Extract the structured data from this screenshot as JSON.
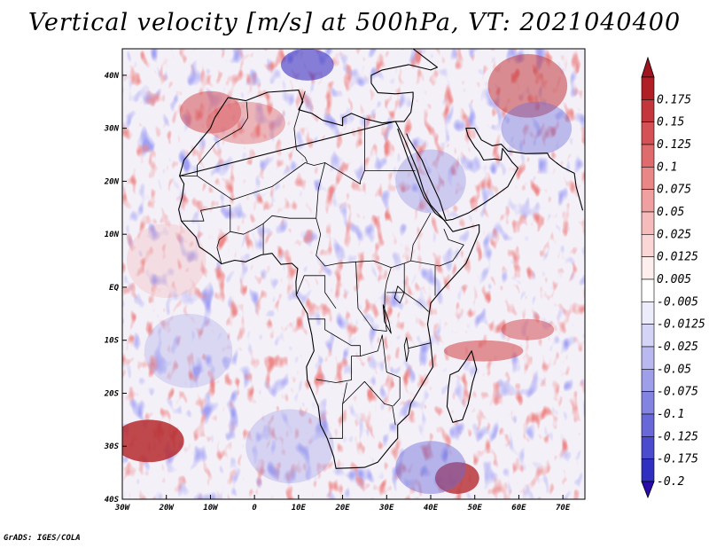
{
  "title": "Vertical velocity [m/s] at 500hPa, VT: 2021040400",
  "footer": "GrADS: IGES/COLA",
  "map": {
    "lon_range": [
      -30,
      75
    ],
    "lat_range": [
      -40,
      45
    ],
    "lat_ticks": [
      {
        "value": 40,
        "label": "40N"
      },
      {
        "value": 30,
        "label": "30N"
      },
      {
        "value": 20,
        "label": "20N"
      },
      {
        "value": 10,
        "label": "10N"
      },
      {
        "value": 0,
        "label": "EQ"
      },
      {
        "value": -10,
        "label": "10S"
      },
      {
        "value": -20,
        "label": "20S"
      },
      {
        "value": -30,
        "label": "30S"
      },
      {
        "value": -40,
        "label": "40S"
      }
    ],
    "lon_ticks": [
      {
        "value": -30,
        "label": "30W"
      },
      {
        "value": -20,
        "label": "20W"
      },
      {
        "value": -10,
        "label": "10W"
      },
      {
        "value": 0,
        "label": "0"
      },
      {
        "value": 10,
        "label": "10E"
      },
      {
        "value": 20,
        "label": "20E"
      },
      {
        "value": 30,
        "label": "30E"
      },
      {
        "value": 40,
        "label": "40E"
      },
      {
        "value": 50,
        "label": "50E"
      },
      {
        "value": 60,
        "label": "60E"
      },
      {
        "value": 70,
        "label": "70E"
      }
    ]
  },
  "colorbar": {
    "levels": [
      {
        "label": "0.175",
        "color": "#b01e26"
      },
      {
        "label": "0.15",
        "color": "#c3363b"
      },
      {
        "label": "0.125",
        "color": "#d45155"
      },
      {
        "label": "0.1",
        "color": "#e06b6d"
      },
      {
        "label": "0.075",
        "color": "#e98686"
      },
      {
        "label": "0.05",
        "color": "#f0a0a0"
      },
      {
        "label": "0.025",
        "color": "#f6bcbc"
      },
      {
        "label": "0.0125",
        "color": "#fbd6d6"
      },
      {
        "label": "0.005",
        "color": "#feeeee"
      },
      {
        "label": "-0.005",
        "color": "#ffffff"
      },
      {
        "label": "-0.0125",
        "color": "#ececfb"
      },
      {
        "label": "-0.025",
        "color": "#d4d4f6"
      },
      {
        "label": "-0.05",
        "color": "#b9b9f0"
      },
      {
        "label": "-0.075",
        "color": "#9e9ee9"
      },
      {
        "label": "-0.1",
        "color": "#8383e1"
      },
      {
        "label": "-0.125",
        "color": "#6868d8"
      },
      {
        "label": "-0.175",
        "color": "#4b4bce"
      },
      {
        "label": "-0.2",
        "color": "#3030c0"
      }
    ],
    "top_color": "#a01420",
    "bottom_color": "#2a0aa8"
  }
}
